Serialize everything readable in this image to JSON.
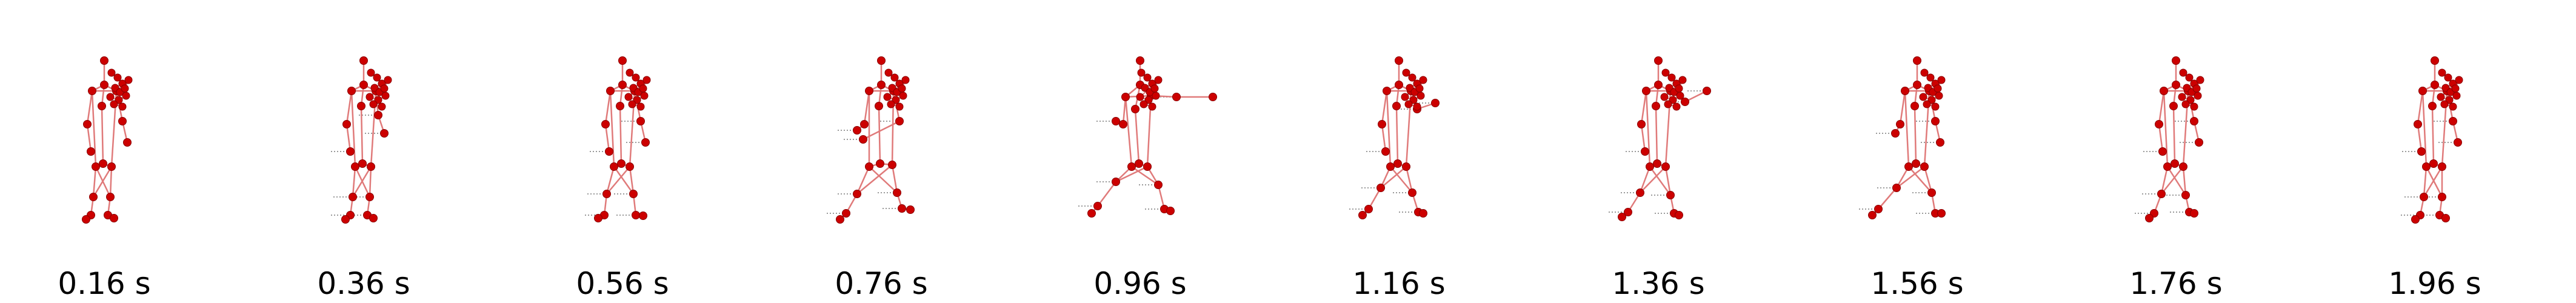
{
  "colors": {
    "joint": "#cc0000",
    "joint_outline": "#8b0000",
    "bone": "#e07a7a",
    "trail": "#9a9a9a",
    "background": "#ffffff"
  },
  "frames": [
    {
      "label": "0.16 s"
    },
    {
      "label": "0.36 s"
    },
    {
      "label": "0.56 s"
    },
    {
      "label": "0.76 s"
    },
    {
      "label": "0.96 s"
    },
    {
      "label": "1.16 s"
    },
    {
      "label": "1.36 s"
    },
    {
      "label": "1.56 s"
    },
    {
      "label": "1.76 s"
    },
    {
      "label": "1.96 s"
    }
  ]
}
